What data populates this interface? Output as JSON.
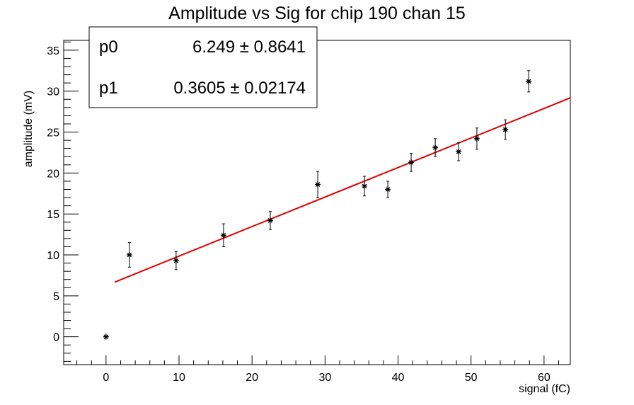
{
  "chart_data": {
    "type": "scatter",
    "title": "Amplitude vs Sig for chip 190 chan 15",
    "xlabel": "signal (fC)",
    "ylabel": "amplitude (mV)",
    "xlim": [
      -5.8,
      63.6
    ],
    "ylim": [
      -3.4,
      36.2
    ],
    "x_ticks": [
      0,
      10,
      20,
      30,
      40,
      50,
      60
    ],
    "y_ticks": [
      0,
      5,
      10,
      15,
      20,
      25,
      30,
      35
    ],
    "grid": false,
    "points": [
      {
        "x": 0.0,
        "y": 0.0,
        "err": 0.0
      },
      {
        "x": 3.2,
        "y": 10.0,
        "err": 1.5
      },
      {
        "x": 9.6,
        "y": 9.3,
        "err": 1.1
      },
      {
        "x": 16.1,
        "y": 12.4,
        "err": 1.4
      },
      {
        "x": 22.5,
        "y": 14.2,
        "err": 1.1
      },
      {
        "x": 29.0,
        "y": 18.6,
        "err": 1.6
      },
      {
        "x": 35.4,
        "y": 18.4,
        "err": 1.2
      },
      {
        "x": 38.6,
        "y": 18.0,
        "err": 1.0
      },
      {
        "x": 41.8,
        "y": 21.3,
        "err": 1.1
      },
      {
        "x": 45.1,
        "y": 23.1,
        "err": 1.1
      },
      {
        "x": 48.3,
        "y": 22.6,
        "err": 1.1
      },
      {
        "x": 50.8,
        "y": 24.2,
        "err": 1.3
      },
      {
        "x": 54.7,
        "y": 25.3,
        "err": 1.2
      },
      {
        "x": 57.9,
        "y": 31.2,
        "err": 1.3
      }
    ],
    "fit": {
      "p0": 6.249,
      "p1": 0.3605,
      "x_range": [
        1.2,
        63.6
      ],
      "color": "#e00000"
    },
    "stats": [
      {
        "name": "p0",
        "value": "6.249",
        "error": "0.8641"
      },
      {
        "name": "p1",
        "value": "0.3605",
        "error": "0.02174"
      }
    ],
    "pm_symbol": "±"
  }
}
